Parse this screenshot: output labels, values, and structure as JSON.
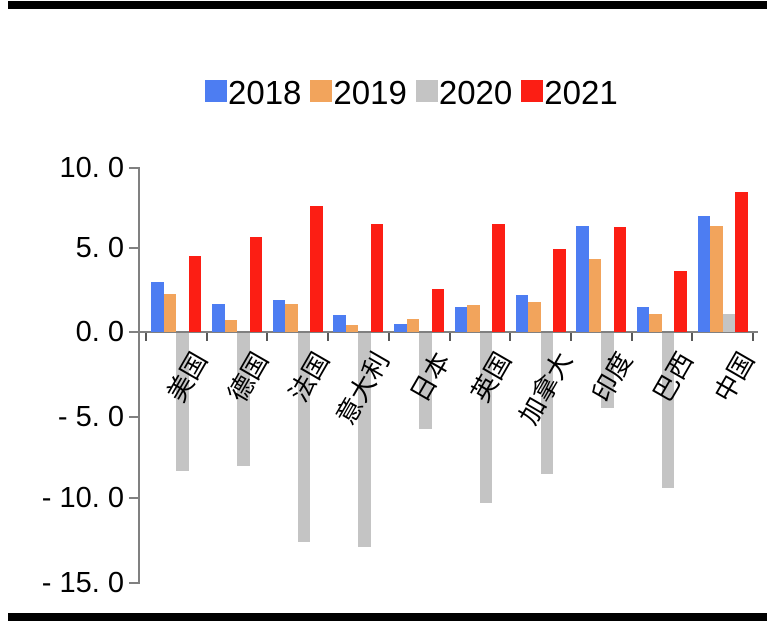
{
  "legend": {
    "items": [
      {
        "label": "2018",
        "color": "#4d7df2"
      },
      {
        "label": "2019",
        "color": "#f2a45c"
      },
      {
        "label": "2020",
        "color": "#c4c4c4"
      },
      {
        "label": "2021",
        "color": "#fc1e14"
      }
    ]
  },
  "chart_data": {
    "type": "bar",
    "categories": [
      "美国",
      "德国",
      "法国",
      "意大利",
      "日本",
      "英国",
      "加拿大",
      "印度",
      "巴西",
      "中国"
    ],
    "series": [
      {
        "name": "2018",
        "color": "#4d7df2",
        "values": [
          3.0,
          1.7,
          1.9,
          1.0,
          0.5,
          1.5,
          2.2,
          6.4,
          1.5,
          7.0
        ]
      },
      {
        "name": "2019",
        "color": "#f2a45c",
        "values": [
          2.3,
          0.7,
          1.7,
          0.4,
          0.8,
          1.6,
          1.8,
          4.4,
          1.1,
          6.4
        ]
      },
      {
        "name": "2020",
        "color": "#c4c4c4",
        "values": [
          -8.3,
          -8.0,
          -12.6,
          -12.9,
          -5.8,
          -10.2,
          -8.5,
          -4.5,
          -9.3,
          1.1
        ]
      },
      {
        "name": "2021",
        "color": "#fc1e14",
        "values": [
          4.6,
          5.7,
          7.6,
          6.5,
          2.6,
          6.5,
          5.0,
          6.3,
          3.7,
          8.4
        ]
      }
    ],
    "title": "",
    "xlabel": "",
    "ylabel": "",
    "ylim": [
      -15.0,
      10.0
    ],
    "ytick_step": 5.0,
    "ytick_labels": [
      "10. 0",
      "5. 0",
      "0. 0",
      "- 5. 0",
      "- 10. 0",
      "- 15. 0"
    ],
    "grid": false,
    "legend_position": "top"
  }
}
